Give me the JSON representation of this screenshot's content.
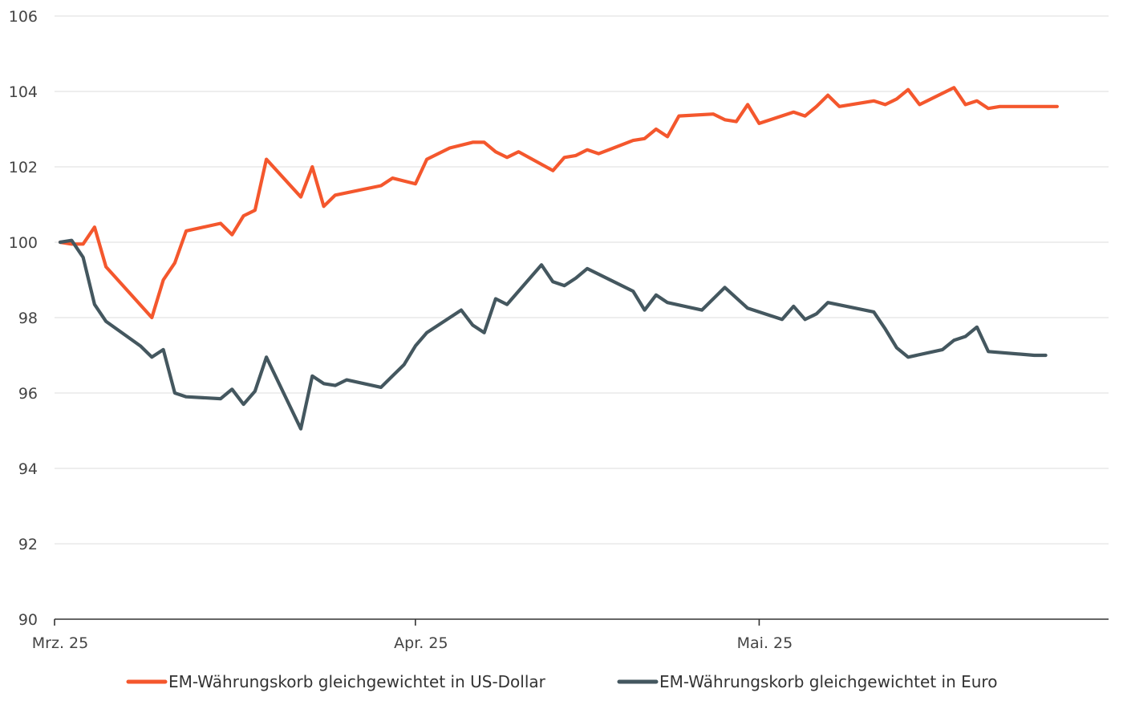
{
  "chart_data": {
    "type": "line",
    "title": "",
    "xlabel": "",
    "ylabel": "",
    "ylim": [
      90,
      106
    ],
    "yticks": [
      90,
      92,
      94,
      96,
      98,
      100,
      102,
      104,
      106
    ],
    "ytick_labels": [
      "90",
      "92",
      "94",
      "96",
      "98",
      "100",
      "102",
      "104",
      "106"
    ],
    "xlim": [
      "2025-03-01",
      "2025-05-31"
    ],
    "xticks": [
      {
        "date": "2025-03-01",
        "label": "Mrz. 25"
      },
      {
        "date": "2025-04-01",
        "label": "Apr. 25"
      },
      {
        "date": "2025-05-01",
        "label": "Mai. 25"
      }
    ],
    "grid": "horizontal",
    "legend_position": "bottom",
    "series": [
      {
        "name": "EM-Währungskorb gleichgewichtet in US-Dollar",
        "color": "#f4572d",
        "points": [
          [
            "2025-03-01",
            100.0
          ],
          [
            "2025-03-02",
            99.95
          ],
          [
            "2025-03-03",
            99.95
          ],
          [
            "2025-03-04",
            100.4
          ],
          [
            "2025-03-05",
            99.35
          ],
          [
            "2025-03-09",
            98.0
          ],
          [
            "2025-03-10",
            99.0
          ],
          [
            "2025-03-11",
            99.45
          ],
          [
            "2025-03-12",
            100.3
          ],
          [
            "2025-03-15",
            100.5
          ],
          [
            "2025-03-16",
            100.2
          ],
          [
            "2025-03-17",
            100.7
          ],
          [
            "2025-03-18",
            100.85
          ],
          [
            "2025-03-19",
            102.2
          ],
          [
            "2025-03-22",
            101.2
          ],
          [
            "2025-03-23",
            102.0
          ],
          [
            "2025-03-24",
            100.95
          ],
          [
            "2025-03-25",
            101.25
          ],
          [
            "2025-03-29",
            101.5
          ],
          [
            "2025-03-30",
            101.7
          ],
          [
            "2025-04-01",
            101.55
          ],
          [
            "2025-04-02",
            102.2
          ],
          [
            "2025-04-04",
            102.5
          ],
          [
            "2025-04-06",
            102.65
          ],
          [
            "2025-04-07",
            102.65
          ],
          [
            "2025-04-08",
            102.4
          ],
          [
            "2025-04-09",
            102.25
          ],
          [
            "2025-04-10",
            102.4
          ],
          [
            "2025-04-13",
            101.9
          ],
          [
            "2025-04-14",
            102.25
          ],
          [
            "2025-04-15",
            102.3
          ],
          [
            "2025-04-16",
            102.45
          ],
          [
            "2025-04-17",
            102.35
          ],
          [
            "2025-04-20",
            102.7
          ],
          [
            "2025-04-21",
            102.75
          ],
          [
            "2025-04-22",
            103.0
          ],
          [
            "2025-04-23",
            102.8
          ],
          [
            "2025-04-24",
            103.35
          ],
          [
            "2025-04-27",
            103.4
          ],
          [
            "2025-04-28",
            103.25
          ],
          [
            "2025-04-29",
            103.2
          ],
          [
            "2025-04-30",
            103.65
          ],
          [
            "2025-05-01",
            103.15
          ],
          [
            "2025-05-04",
            103.45
          ],
          [
            "2025-05-05",
            103.35
          ],
          [
            "2025-05-06",
            103.6
          ],
          [
            "2025-05-07",
            103.9
          ],
          [
            "2025-05-08",
            103.6
          ],
          [
            "2025-05-11",
            103.75
          ],
          [
            "2025-05-12",
            103.65
          ],
          [
            "2025-05-13",
            103.8
          ],
          [
            "2025-05-14",
            104.05
          ],
          [
            "2025-05-15",
            103.65
          ],
          [
            "2025-05-18",
            104.1
          ],
          [
            "2025-05-19",
            103.65
          ],
          [
            "2025-05-20",
            103.75
          ],
          [
            "2025-05-21",
            103.55
          ],
          [
            "2025-05-22",
            103.6
          ],
          [
            "2025-05-25",
            103.6
          ],
          [
            "2025-05-26",
            103.6
          ],
          [
            "2025-05-27",
            103.6
          ]
        ]
      },
      {
        "name": "EM-Währungskorb gleichgewichtet in Euro",
        "color": "#44575f",
        "points": [
          [
            "2025-03-01",
            100.0
          ],
          [
            "2025-03-02",
            100.05
          ],
          [
            "2025-03-03",
            99.6
          ],
          [
            "2025-03-04",
            98.35
          ],
          [
            "2025-03-05",
            97.9
          ],
          [
            "2025-03-08",
            97.25
          ],
          [
            "2025-03-09",
            96.95
          ],
          [
            "2025-03-10",
            97.15
          ],
          [
            "2025-03-11",
            96.0
          ],
          [
            "2025-03-12",
            95.9
          ],
          [
            "2025-03-15",
            95.85
          ],
          [
            "2025-03-16",
            96.1
          ],
          [
            "2025-03-17",
            95.7
          ],
          [
            "2025-03-18",
            96.05
          ],
          [
            "2025-03-19",
            96.95
          ],
          [
            "2025-03-22",
            95.05
          ],
          [
            "2025-03-23",
            96.45
          ],
          [
            "2025-03-24",
            96.25
          ],
          [
            "2025-03-25",
            96.2
          ],
          [
            "2025-03-26",
            96.35
          ],
          [
            "2025-03-29",
            96.15
          ],
          [
            "2025-03-30",
            96.45
          ],
          [
            "2025-03-31",
            96.75
          ],
          [
            "2025-04-01",
            97.25
          ],
          [
            "2025-04-02",
            97.6
          ],
          [
            "2025-04-05",
            98.2
          ],
          [
            "2025-04-06",
            97.8
          ],
          [
            "2025-04-07",
            97.6
          ],
          [
            "2025-04-08",
            98.5
          ],
          [
            "2025-04-09",
            98.35
          ],
          [
            "2025-04-12",
            99.4
          ],
          [
            "2025-04-13",
            98.95
          ],
          [
            "2025-04-14",
            98.85
          ],
          [
            "2025-04-15",
            99.05
          ],
          [
            "2025-04-16",
            99.3
          ],
          [
            "2025-04-20",
            98.7
          ],
          [
            "2025-04-21",
            98.2
          ],
          [
            "2025-04-22",
            98.6
          ],
          [
            "2025-04-23",
            98.4
          ],
          [
            "2025-04-26",
            98.2
          ],
          [
            "2025-04-28",
            98.8
          ],
          [
            "2025-04-30",
            98.25
          ],
          [
            "2025-05-03",
            97.95
          ],
          [
            "2025-05-04",
            98.3
          ],
          [
            "2025-05-05",
            97.95
          ],
          [
            "2025-05-06",
            98.1
          ],
          [
            "2025-05-07",
            98.4
          ],
          [
            "2025-05-11",
            98.15
          ],
          [
            "2025-05-12",
            97.7
          ],
          [
            "2025-05-13",
            97.2
          ],
          [
            "2025-05-14",
            96.95
          ],
          [
            "2025-05-17",
            97.15
          ],
          [
            "2025-05-18",
            97.4
          ],
          [
            "2025-05-19",
            97.5
          ],
          [
            "2025-05-20",
            97.75
          ],
          [
            "2025-05-21",
            97.1
          ],
          [
            "2025-05-25",
            97.0
          ],
          [
            "2025-05-26",
            97.0
          ]
        ]
      }
    ]
  }
}
